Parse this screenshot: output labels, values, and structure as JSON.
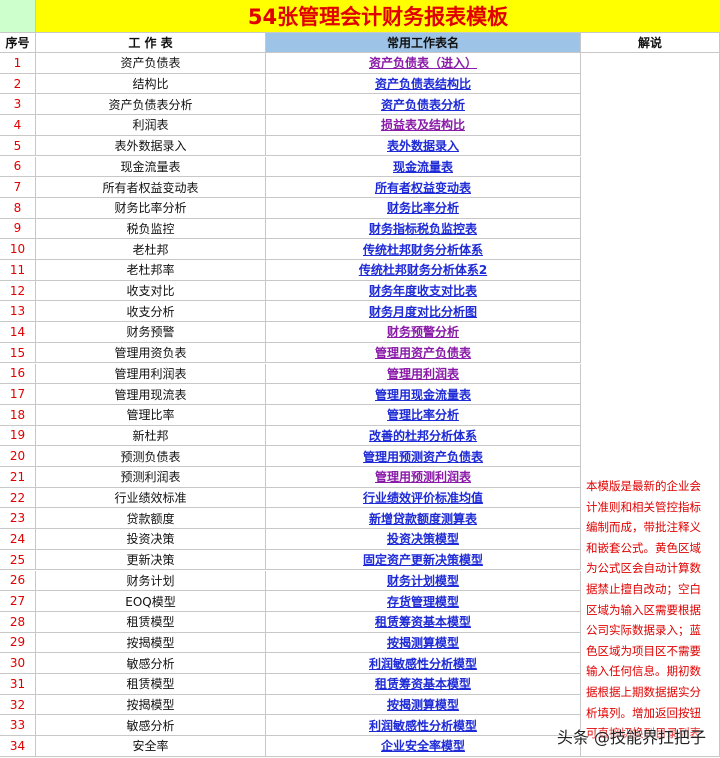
{
  "header": {
    "title": "54张管理会计财务报表模板"
  },
  "table": {
    "columns": [
      "序号",
      "工 作 表",
      "常用工作表名",
      "解说"
    ],
    "rows": [
      {
        "no": 1,
        "sheet": "资产负债表",
        "link": "资产负债表（进入）",
        "visited": true
      },
      {
        "no": 2,
        "sheet": "结构比",
        "link": "资产负债表结构比",
        "visited": false
      },
      {
        "no": 3,
        "sheet": "资产负债表分析",
        "link": "资产负债表分析",
        "visited": false
      },
      {
        "no": 4,
        "sheet": "利润表",
        "link": "损益表及结构比",
        "visited": true
      },
      {
        "no": 5,
        "sheet": "表外数据录入",
        "link": "表外数据录入",
        "visited": false
      },
      {
        "no": 6,
        "sheet": "现金流量表",
        "link": "现金流量表",
        "visited": false
      },
      {
        "no": 7,
        "sheet": "所有者权益变动表",
        "link": "所有者权益变动表",
        "visited": false
      },
      {
        "no": 8,
        "sheet": "财务比率分析",
        "link": "财务比率分析",
        "visited": false
      },
      {
        "no": 9,
        "sheet": "税负监控",
        "link": "财务指标税负监控表",
        "visited": false
      },
      {
        "no": 10,
        "sheet": "老杜邦",
        "link": "传统杜邦财务分析体系",
        "visited": false
      },
      {
        "no": 11,
        "sheet": "老杜邦率",
        "link": "传统杜邦财务分析体系2",
        "visited": false
      },
      {
        "no": 12,
        "sheet": "收支对比",
        "link": "财务年度收支对比表",
        "visited": false
      },
      {
        "no": 13,
        "sheet": "收支分析",
        "link": "财务月度对比分析图",
        "visited": false
      },
      {
        "no": 14,
        "sheet": "财务预警",
        "link": "财务预警分析",
        "visited": true
      },
      {
        "no": 15,
        "sheet": "管理用资负表",
        "link": "管理用资产负债表",
        "visited": true
      },
      {
        "no": 16,
        "sheet": "管理用利润表",
        "link": "管理用利润表",
        "visited": true
      },
      {
        "no": 17,
        "sheet": "管理用现流表",
        "link": "管理用现金流量表",
        "visited": false
      },
      {
        "no": 18,
        "sheet": "管理比率",
        "link": "管理比率分析",
        "visited": false
      },
      {
        "no": 19,
        "sheet": "新杜邦",
        "link": "改善的杜邦分析体系",
        "visited": false
      },
      {
        "no": 20,
        "sheet": "预测负债表",
        "link": "管理用预测资产负债表",
        "visited": false
      },
      {
        "no": 21,
        "sheet": "预测利润表",
        "link": "管理用预测利润表",
        "visited": true
      },
      {
        "no": 22,
        "sheet": "行业绩效标准",
        "link": "行业绩效评价标准均值",
        "visited": false
      },
      {
        "no": 23,
        "sheet": "贷款额度",
        "link": "新增贷款额度测算表",
        "visited": false
      },
      {
        "no": 24,
        "sheet": "投资决策",
        "link": "投资决策模型",
        "visited": false
      },
      {
        "no": 25,
        "sheet": "更新决策",
        "link": "固定资产更新决策模型",
        "visited": false
      },
      {
        "no": 26,
        "sheet": "财务计划",
        "link": "财务计划模型",
        "visited": false
      },
      {
        "no": 27,
        "sheet": "EOQ模型",
        "link": "存货管理模型",
        "visited": false
      },
      {
        "no": 28,
        "sheet": "租赁模型",
        "link": "租赁筹资基本模型",
        "visited": false
      },
      {
        "no": 29,
        "sheet": "按揭模型",
        "link": "按揭测算模型",
        "visited": false
      },
      {
        "no": 30,
        "sheet": "敏感分析",
        "link": "利润敏感性分析模型",
        "visited": false
      },
      {
        "no": 31,
        "sheet": "租赁模型",
        "link": "租赁筹资基本模型",
        "visited": false
      },
      {
        "no": 32,
        "sheet": "按揭模型",
        "link": "按揭测算模型",
        "visited": false
      },
      {
        "no": 33,
        "sheet": "敏感分析",
        "link": "利润敏感性分析模型",
        "visited": false
      },
      {
        "no": 34,
        "sheet": "安全率",
        "link": "企业安全率模型",
        "visited": false
      }
    ],
    "note": [
      "本模版是最新的企业会",
      "计准则和相关管控指标",
      "编制而成，带批注释义",
      "和嵌套公式。黄色区域",
      "为公式区会自动计算数",
      "据禁止擅自改动；空白",
      "区域为输入区需要根据",
      "公司实际数据录入；蓝",
      "色区域为项目区不需要",
      "输入任何信息。期初数",
      "据根据上期数据据实分",
      "析填列。增加返回按钮",
      "可直接切换到目录列表"
    ]
  },
  "watermark": "头条 @技能界扛把子"
}
